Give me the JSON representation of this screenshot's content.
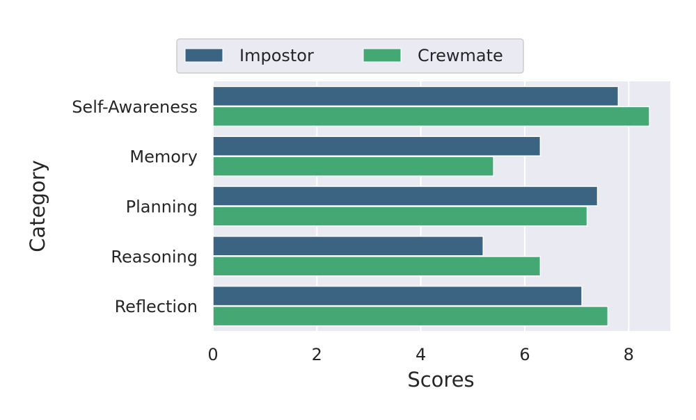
{
  "chart_data": {
    "type": "bar",
    "orientation": "horizontal",
    "categories": [
      "Self-Awareness",
      "Memory",
      "Planning",
      "Reasoning",
      "Reflection"
    ],
    "series": [
      {
        "name": "Impostor",
        "values": [
          7.8,
          6.3,
          7.4,
          5.2,
          7.1
        ],
        "color": "#3b6482"
      },
      {
        "name": "Crewmate",
        "values": [
          8.4,
          5.4,
          7.2,
          6.3,
          7.6
        ],
        "color": "#43a874"
      }
    ],
    "xlabel": "Scores",
    "ylabel": "Category",
    "xlim": [
      0,
      8.8
    ],
    "xticks": [
      0,
      2,
      4,
      6,
      8
    ],
    "grid": true,
    "legend_position": "top-center",
    "background_color": "#eaeaf2",
    "grid_color": "#ffffff"
  }
}
